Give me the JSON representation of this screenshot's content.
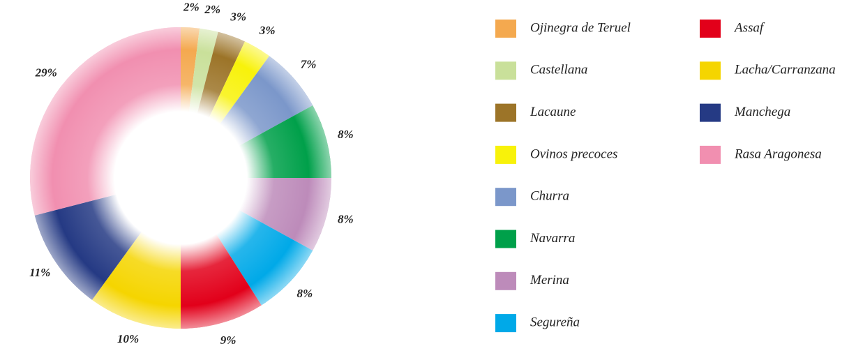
{
  "chart_data": {
    "type": "donut",
    "categories": [
      "Ojinegra de Teruel",
      "Castellana",
      "Lacaune",
      "Ovinos precoces",
      "Churra",
      "Navarra",
      "Merina",
      "Segureña",
      "Assaf",
      "Lacha/Carranzana",
      "Manchega",
      "Rasa Aragonesa"
    ],
    "values": [
      2,
      2,
      3,
      3,
      7,
      8,
      8,
      8,
      9,
      10,
      11,
      29
    ],
    "value_labels": [
      "2%",
      "2%",
      "3%",
      "3%",
      "7%",
      "8%",
      "8%",
      "8%",
      "9%",
      "10%",
      "11%",
      "29%"
    ],
    "colors": [
      "#f4a94f",
      "#c9e09a",
      "#9c7428",
      "#f8f20a",
      "#7b97ca",
      "#00a04a",
      "#bd8bba",
      "#00a9e8",
      "#e2001a",
      "#f5d500",
      "#253a84",
      "#f18fb0"
    ],
    "legend": "right"
  }
}
